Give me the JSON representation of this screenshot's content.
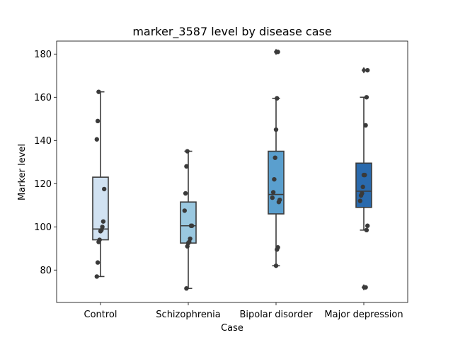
{
  "chart_data": {
    "type": "box",
    "title": "marker_3587 level by disease case",
    "xlabel": "Case",
    "ylabel": "Marker level",
    "ylim": [
      65,
      186
    ],
    "yticks": [
      80,
      100,
      120,
      140,
      160,
      180
    ],
    "grid": false,
    "categories": [
      "Control",
      "Schizophrenia",
      "Bipolar disorder",
      "Major depression"
    ],
    "colors": [
      "#d1e2f2",
      "#9ac8e0",
      "#5a9fce",
      "#2a6aad"
    ],
    "boxes": [
      {
        "category": "Control",
        "whisker_low": 77,
        "q1": 94,
        "median": 99,
        "q3": 123,
        "whisker_high": 162.5,
        "outliers": []
      },
      {
        "category": "Schizophrenia",
        "whisker_low": 71.5,
        "q1": 92.5,
        "median": 100.5,
        "q3": 111.5,
        "whisker_high": 135,
        "outliers": []
      },
      {
        "category": "Bipolar disorder",
        "whisker_low": 82,
        "q1": 106,
        "median": 115,
        "q3": 135,
        "whisker_high": 159.5,
        "outliers": [
          181
        ]
      },
      {
        "category": "Major depression",
        "whisker_low": 98.5,
        "q1": 109,
        "median": 116.5,
        "q3": 129.5,
        "whisker_high": 160,
        "outliers": [
          172.5,
          72
        ]
      }
    ],
    "points": [
      {
        "category": "Control",
        "values": [
          77,
          83.5,
          93,
          94,
          98,
          98.5,
          100,
          102.5,
          117.5,
          140.5,
          149,
          162.5
        ]
      },
      {
        "category": "Schizophrenia",
        "values": [
          71.5,
          91,
          92.5,
          93,
          94.5,
          100.5,
          100.5,
          107.5,
          115.5,
          128,
          135
        ]
      },
      {
        "category": "Bipolar disorder",
        "values": [
          82,
          89.5,
          90.5,
          111.5,
          112.5,
          113.5,
          116,
          122,
          132,
          145,
          159.5,
          181
        ]
      },
      {
        "category": "Major depression",
        "values": [
          72,
          98.5,
          100.5,
          112,
          114.5,
          115.5,
          118.5,
          124,
          124,
          147,
          160,
          172.5
        ]
      }
    ]
  }
}
